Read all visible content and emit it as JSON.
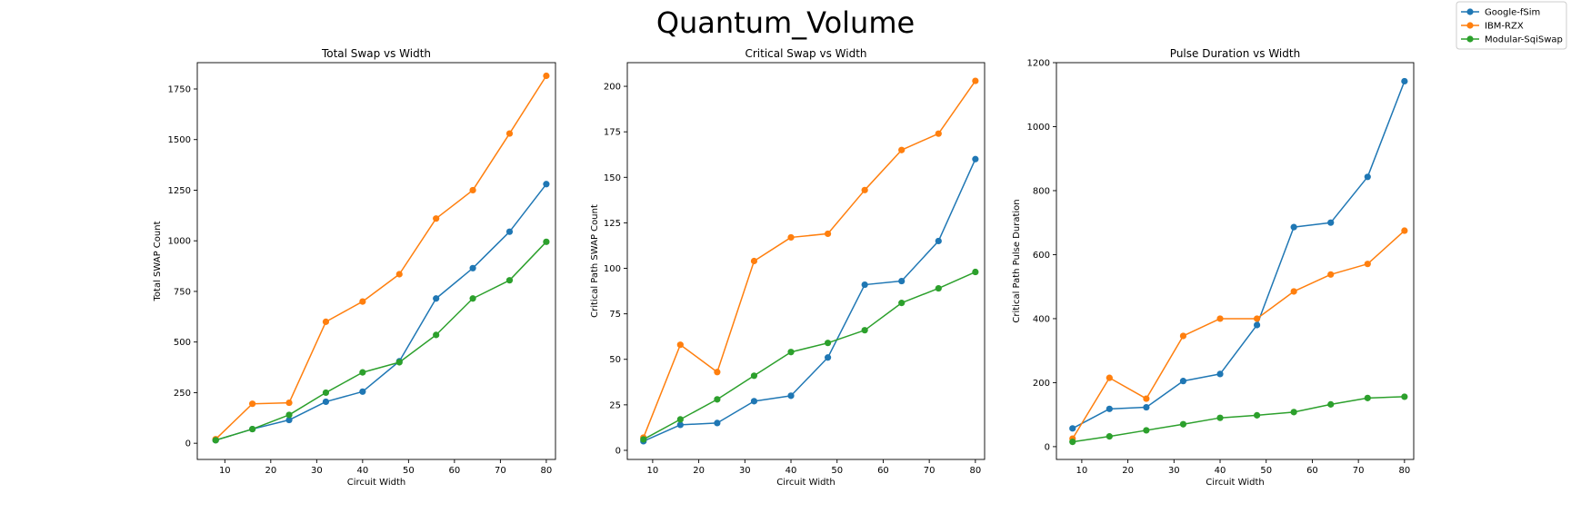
{
  "figure": {
    "title": "Quantum_Volume"
  },
  "legend": {
    "placement": "top-right",
    "entries": [
      {
        "name": "Google-fSim",
        "color": "#1f77b4"
      },
      {
        "name": "IBM-RZX",
        "color": "#ff7f0e"
      },
      {
        "name": "Modular-SqiSwap",
        "color": "#2ca02c"
      }
    ]
  },
  "chart_data": [
    {
      "type": "line",
      "title": "Total Swap vs Width",
      "xlabel": "Circuit Width",
      "ylabel": "Total SWAP Count",
      "x": [
        8,
        16,
        24,
        32,
        40,
        48,
        56,
        64,
        72,
        80
      ],
      "xlim": [
        4,
        82
      ],
      "ylim": [
        -80,
        1880
      ],
      "xticks": [
        10,
        20,
        30,
        40,
        50,
        60,
        70,
        80
      ],
      "yticks": [
        0,
        250,
        500,
        750,
        1000,
        1250,
        1500,
        1750
      ],
      "ytick_labels": [
        "0",
        "250",
        "500",
        "750",
        "1000",
        "1250",
        "1500",
        "1750"
      ],
      "grid": false,
      "series": [
        {
          "name": "Google-fSim",
          "color": "#1f77b4",
          "values": [
            15,
            70,
            115,
            205,
            255,
            405,
            715,
            865,
            1045,
            1280
          ]
        },
        {
          "name": "IBM-RZX",
          "color": "#ff7f0e",
          "values": [
            20,
            195,
            200,
            600,
            700,
            835,
            1110,
            1250,
            1530,
            1815
          ]
        },
        {
          "name": "Modular-SqiSwap",
          "color": "#2ca02c",
          "values": [
            15,
            70,
            140,
            250,
            350,
            400,
            535,
            715,
            805,
            995
          ]
        }
      ]
    },
    {
      "type": "line",
      "title": "Critical Swap vs Width",
      "xlabel": "Circuit Width",
      "ylabel": "Critical Path SWAP Count",
      "x": [
        8,
        16,
        24,
        32,
        40,
        48,
        56,
        64,
        72,
        80
      ],
      "xlim": [
        4.5,
        82
      ],
      "ylim": [
        -5,
        213
      ],
      "xticks": [
        10,
        20,
        30,
        40,
        50,
        60,
        70,
        80
      ],
      "yticks": [
        0,
        25,
        50,
        75,
        100,
        125,
        150,
        175,
        200
      ],
      "ytick_labels": [
        "0",
        "25",
        "50",
        "75",
        "100",
        "125",
        "150",
        "175",
        "200"
      ],
      "grid": false,
      "series": [
        {
          "name": "Google-fSim",
          "color": "#1f77b4",
          "values": [
            5,
            14,
            15,
            27,
            30,
            51,
            91,
            93,
            115,
            160
          ]
        },
        {
          "name": "IBM-RZX",
          "color": "#ff7f0e",
          "values": [
            7,
            58,
            43,
            104,
            117,
            119,
            143,
            165,
            174,
            203
          ]
        },
        {
          "name": "Modular-SqiSwap",
          "color": "#2ca02c",
          "values": [
            6,
            17,
            28,
            41,
            54,
            59,
            66,
            81,
            89,
            98
          ]
        }
      ]
    },
    {
      "type": "line",
      "title": "Pulse Duration vs Width",
      "xlabel": "Circuit Width",
      "ylabel": "Critical Path Pulse Duration",
      "x": [
        8,
        16,
        24,
        32,
        40,
        48,
        56,
        64,
        72,
        80
      ],
      "xlim": [
        4.5,
        82
      ],
      "ylim": [
        -40,
        1200
      ],
      "xticks": [
        10,
        20,
        30,
        40,
        50,
        60,
        70,
        80
      ],
      "yticks": [
        0,
        200,
        400,
        600,
        800,
        1000,
        1200
      ],
      "ytick_labels": [
        "0",
        "200",
        "400",
        "600",
        "800",
        "1000",
        "1200"
      ],
      "grid": false,
      "series": [
        {
          "name": "Google-fSim",
          "color": "#1f77b4",
          "values": [
            57,
            118,
            123,
            205,
            227,
            380,
            686,
            700,
            843,
            1142
          ]
        },
        {
          "name": "IBM-RZX",
          "color": "#ff7f0e",
          "values": [
            25,
            215,
            150,
            346,
            400,
            400,
            485,
            538,
            571,
            675
          ]
        },
        {
          "name": "Modular-SqiSwap",
          "color": "#2ca02c",
          "values": [
            15,
            32,
            51,
            70,
            90,
            98,
            108,
            132,
            152,
            156
          ]
        }
      ]
    }
  ]
}
